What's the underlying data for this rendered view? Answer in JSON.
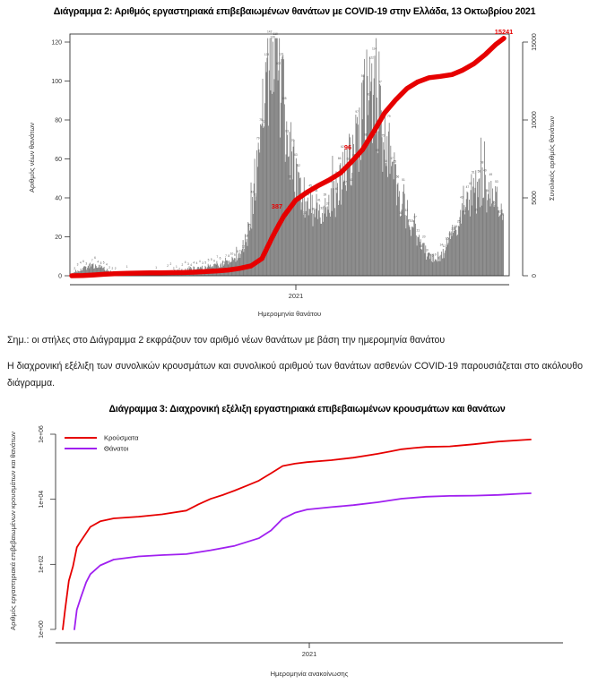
{
  "page": {
    "background": "#ffffff",
    "language": "el"
  },
  "notes": {
    "note1": "Σημ.: οι στήλες στο Διάγραμμα 2 εκφράζουν τον αριθμό νέων θανάτων με βάση την ημερομηνία θανάτου",
    "para1": "Η διαχρονική εξέλιξη των συνολικών κρουσμάτων και συνολικού αριθμού των θανάτων ασθενών COVID-19 παρουσιάζεται στο ακόλουθο διάγραμμα."
  },
  "chart_data": [
    {
      "type": "bar",
      "title": "Διάγραμμα 2: Αριθμός εργαστηριακά επιβεβαιωμένων θανάτων με COVID-19 στην Ελλάδα, 13 Οκτωβρίου 2021",
      "xlabel": "Ημερομηνία θανάτου",
      "ylabel_left": "Αριθμός νέων θανάτων",
      "ylabel_right": "Συνολικός αριθμός θανάτων",
      "x_tick_labels": [
        "2021"
      ],
      "y_left_ticks": [
        0,
        20,
        40,
        60,
        80,
        100,
        120
      ],
      "y_right_ticks": [
        0,
        5000,
        10000,
        15000
      ],
      "ylim_left": [
        0,
        123
      ],
      "ylim_right": [
        0,
        15400
      ],
      "grid": false,
      "bar_color": "#7d7d7d",
      "bar_edge_color": "#4a4a4a",
      "line_color": "#e60000",
      "bars_new_deaths_envelope": [
        1,
        2,
        3,
        4,
        5,
        5,
        5,
        4,
        3,
        2,
        2,
        1,
        1,
        1,
        1,
        1,
        1,
        1,
        1,
        1,
        1,
        1,
        2,
        2,
        2,
        3,
        3,
        4,
        4,
        4,
        4,
        5,
        5,
        6,
        6,
        6,
        7,
        9,
        11,
        14,
        20,
        30,
        45,
        65,
        85,
        105,
        121,
        112,
        95,
        80,
        65,
        52,
        45,
        40,
        37,
        35,
        34,
        33,
        35,
        37,
        40,
        44,
        50,
        56,
        62,
        68,
        76,
        85,
        95,
        90,
        82,
        74,
        66,
        58,
        50,
        44,
        37,
        30,
        24,
        19,
        15,
        12,
        10,
        9,
        10,
        12,
        16,
        21,
        27,
        33,
        37,
        41,
        44,
        45,
        43,
        40,
        38,
        36,
        34
      ],
      "cumulative_deaths_line": [
        [
          0.0,
          0
        ],
        [
          0.026,
          10
        ],
        [
          0.051,
          50
        ],
        [
          0.077,
          100
        ],
        [
          0.104,
          140
        ],
        [
          0.129,
          160
        ],
        [
          0.154,
          175
        ],
        [
          0.18,
          185
        ],
        [
          0.207,
          192
        ],
        [
          0.232,
          199
        ],
        [
          0.258,
          206
        ],
        [
          0.284,
          230
        ],
        [
          0.311,
          271
        ],
        [
          0.336,
          310
        ],
        [
          0.362,
          369
        ],
        [
          0.388,
          470
        ],
        [
          0.415,
          635
        ],
        [
          0.44,
          1100
        ],
        [
          0.465,
          2517
        ],
        [
          0.478,
          3200
        ],
        [
          0.491,
          3840
        ],
        [
          0.518,
          4838
        ],
        [
          0.544,
          5350
        ],
        [
          0.569,
          5764
        ],
        [
          0.596,
          6150
        ],
        [
          0.622,
          6597
        ],
        [
          0.647,
          7300
        ],
        [
          0.673,
          8093
        ],
        [
          0.699,
          9250
        ],
        [
          0.724,
          10453
        ],
        [
          0.75,
          11300
        ],
        [
          0.776,
          12024
        ],
        [
          0.801,
          12450
        ],
        [
          0.827,
          12710
        ],
        [
          0.853,
          12800
        ],
        [
          0.88,
          12912
        ],
        [
          0.905,
          13200
        ],
        [
          0.931,
          13615
        ],
        [
          0.957,
          14200
        ],
        [
          0.982,
          14860
        ],
        [
          1.0,
          15241
        ]
      ],
      "annotations": [
        {
          "text": "387",
          "fx": 0.475,
          "fy": 0.287
        },
        {
          "text": "96",
          "fx": 0.639,
          "fy": 0.54
        },
        {
          "text": "15241",
          "fx": 1.0,
          "fy": 1.034
        }
      ],
      "annotation_color": "#e60000"
    },
    {
      "type": "line",
      "title": "Διάγραμμα 3: Διαχρονική εξέλιξη εργαστηριακά επιβεβαιωμένων κρουσμάτων και θανάτων",
      "xlabel": "Ημερομηνία ανακοίνωσης",
      "ylabel": "Αριθμός εργαστηριακά επιβεβαιωμένων κρουσμάτων και θανάτων",
      "x_tick_labels": [
        "2021"
      ],
      "y_tick_labels": [
        "1e+00",
        "1e+02",
        "1e+04",
        "1e+06"
      ],
      "y_scale": "log10",
      "ylim_log": [
        0,
        6
      ],
      "grid": false,
      "legend_position": "top-left",
      "series": [
        {
          "name": "Κρούσματα",
          "color": "#e60000",
          "points": [
            [
              0.0,
              1
            ],
            [
              0.005,
              4
            ],
            [
              0.013,
              31
            ],
            [
              0.022,
              89
            ],
            [
              0.03,
              331
            ],
            [
              0.039,
              530
            ],
            [
              0.059,
              1415
            ],
            [
              0.08,
              2100
            ],
            [
              0.109,
              2591
            ],
            [
              0.162,
              2917
            ],
            [
              0.212,
              3432
            ],
            [
              0.264,
              4477
            ],
            [
              0.29,
              7000
            ],
            [
              0.316,
              10317
            ],
            [
              0.342,
              13500
            ],
            [
              0.367,
              18475
            ],
            [
              0.394,
              26500
            ],
            [
              0.419,
              37196
            ],
            [
              0.445,
              63000
            ],
            [
              0.47,
              105271
            ],
            [
              0.496,
              124000
            ],
            [
              0.522,
              138850
            ],
            [
              0.574,
              158716
            ],
            [
              0.621,
              190235
            ],
            [
              0.673,
              249458
            ],
            [
              0.7,
              295000
            ],
            [
              0.724,
              344917
            ],
            [
              0.75,
              378000
            ],
            [
              0.776,
              405542
            ],
            [
              0.827,
              421266
            ],
            [
              0.879,
              493135
            ],
            [
              0.931,
              594471
            ],
            [
              0.981,
              661978
            ],
            [
              1.0,
              687596
            ]
          ]
        },
        {
          "name": "Θάνατοι",
          "color": "#a020f0",
          "points": [
            [
              0.025,
              1
            ],
            [
              0.03,
              4
            ],
            [
              0.039,
              10
            ],
            [
              0.05,
              28
            ],
            [
              0.059,
              50
            ],
            [
              0.08,
              93
            ],
            [
              0.109,
              140
            ],
            [
              0.162,
              175
            ],
            [
              0.212,
              192
            ],
            [
              0.264,
              206
            ],
            [
              0.316,
              271
            ],
            [
              0.367,
              369
            ],
            [
              0.419,
              635
            ],
            [
              0.445,
              1100
            ],
            [
              0.47,
              2517
            ],
            [
              0.496,
              3840
            ],
            [
              0.522,
              4838
            ],
            [
              0.574,
              5764
            ],
            [
              0.621,
              6597
            ],
            [
              0.673,
              8093
            ],
            [
              0.724,
              10453
            ],
            [
              0.776,
              12024
            ],
            [
              0.827,
              12710
            ],
            [
              0.879,
              12912
            ],
            [
              0.931,
              13615
            ],
            [
              0.981,
              14860
            ],
            [
              1.0,
              15241
            ]
          ]
        }
      ]
    }
  ]
}
